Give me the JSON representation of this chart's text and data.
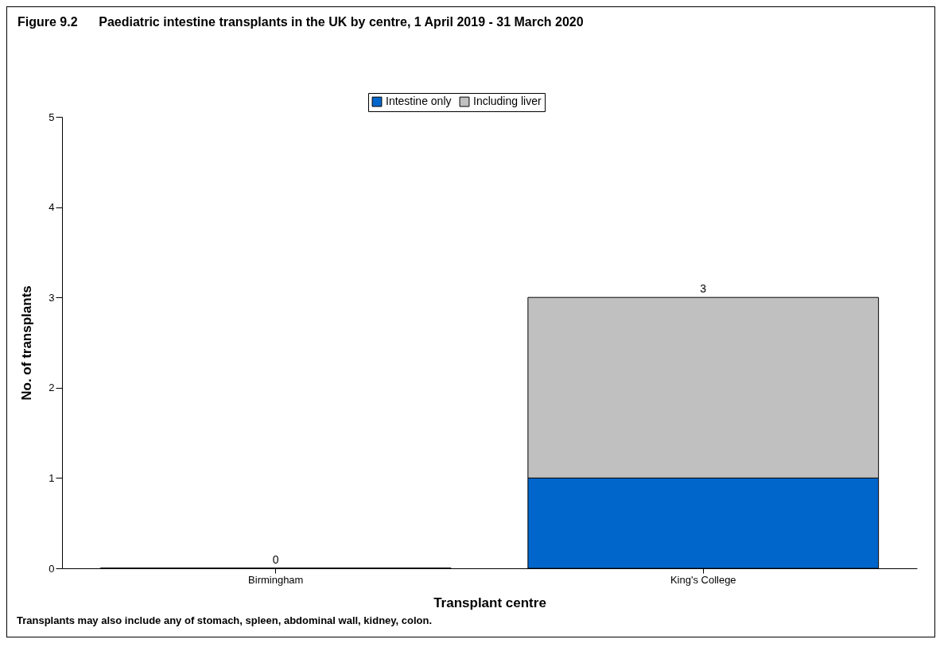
{
  "chart_data": {
    "type": "bar",
    "title": "Figure 9.2      Paediatric intestine transplants in the UK by centre, 1 April 2019 - 31 March 2020",
    "xlabel": "Transplant centre",
    "ylabel": "No. of transplants",
    "categories": [
      "Birmingham",
      "King's College"
    ],
    "series": [
      {
        "name": "Intestine only",
        "color": "#0066cc",
        "values": [
          0,
          1
        ]
      },
      {
        "name": "Including liver",
        "color": "#c0c0c0",
        "values": [
          0,
          2
        ]
      }
    ],
    "stacked": true,
    "totals": [
      "0",
      "3"
    ],
    "ylim": [
      0,
      5
    ],
    "yticks": [
      0,
      1,
      2,
      3,
      4,
      5
    ],
    "grid": false,
    "legend": "top",
    "annotations": [
      "Transplants may also include any of stomach, spleen, abdominal wall, kidney, colon."
    ]
  }
}
